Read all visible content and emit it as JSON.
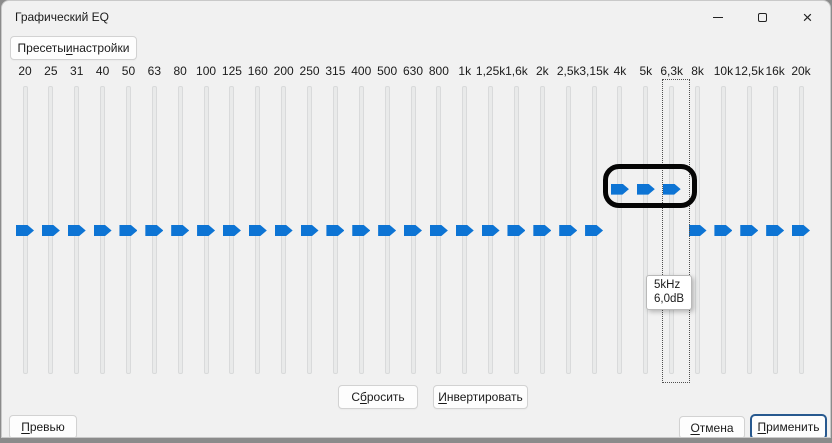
{
  "window": {
    "title": "Графический EQ",
    "close_glyph": "×"
  },
  "presets_button": {
    "pre": "Пресеты ",
    "key": "и",
    "post": " настройки"
  },
  "eq": {
    "thumb_color": "#0d74d4",
    "unit_note_tooltip": {
      "frequency": "5kHz",
      "gain": "6,0dB"
    },
    "focused_band_label": "6,3k",
    "bands": [
      {
        "label": "20",
        "gain": 0
      },
      {
        "label": "25",
        "gain": 0
      },
      {
        "label": "31",
        "gain": 0
      },
      {
        "label": "40",
        "gain": 0
      },
      {
        "label": "50",
        "gain": 0
      },
      {
        "label": "63",
        "gain": 0
      },
      {
        "label": "80",
        "gain": 0
      },
      {
        "label": "100",
        "gain": 0
      },
      {
        "label": "125",
        "gain": 0
      },
      {
        "label": "160",
        "gain": 0
      },
      {
        "label": "200",
        "gain": 0
      },
      {
        "label": "250",
        "gain": 0
      },
      {
        "label": "315",
        "gain": 0
      },
      {
        "label": "400",
        "gain": 0
      },
      {
        "label": "500",
        "gain": 0
      },
      {
        "label": "630",
        "gain": 0
      },
      {
        "label": "800",
        "gain": 0
      },
      {
        "label": "1k",
        "gain": 0
      },
      {
        "label": "1,25k",
        "gain": 0
      },
      {
        "label": "1,6k",
        "gain": 0
      },
      {
        "label": "2k",
        "gain": 0
      },
      {
        "label": "2,5k",
        "gain": 0
      },
      {
        "label": "3,15k",
        "gain": 0
      },
      {
        "label": "4k",
        "gain": 6
      },
      {
        "label": "5k",
        "gain": 6
      },
      {
        "label": "6,3k",
        "gain": 6
      },
      {
        "label": "8k",
        "gain": 0
      },
      {
        "label": "10k",
        "gain": 0
      },
      {
        "label": "12,5k",
        "gain": 0
      },
      {
        "label": "16k",
        "gain": 0
      },
      {
        "label": "20k",
        "gain": 0
      }
    ]
  },
  "buttons": {
    "reset": {
      "pre": "С",
      "key": "б",
      "post": "росить"
    },
    "invert": {
      "pre": "",
      "key": "И",
      "post": "нвертировать"
    },
    "preview": {
      "pre": "",
      "key": "П",
      "post": "ревью"
    },
    "cancel": {
      "pre": "",
      "key": "О",
      "post": "тмена"
    },
    "apply": {
      "pre": "",
      "key": "П",
      "post": "рименить"
    }
  }
}
